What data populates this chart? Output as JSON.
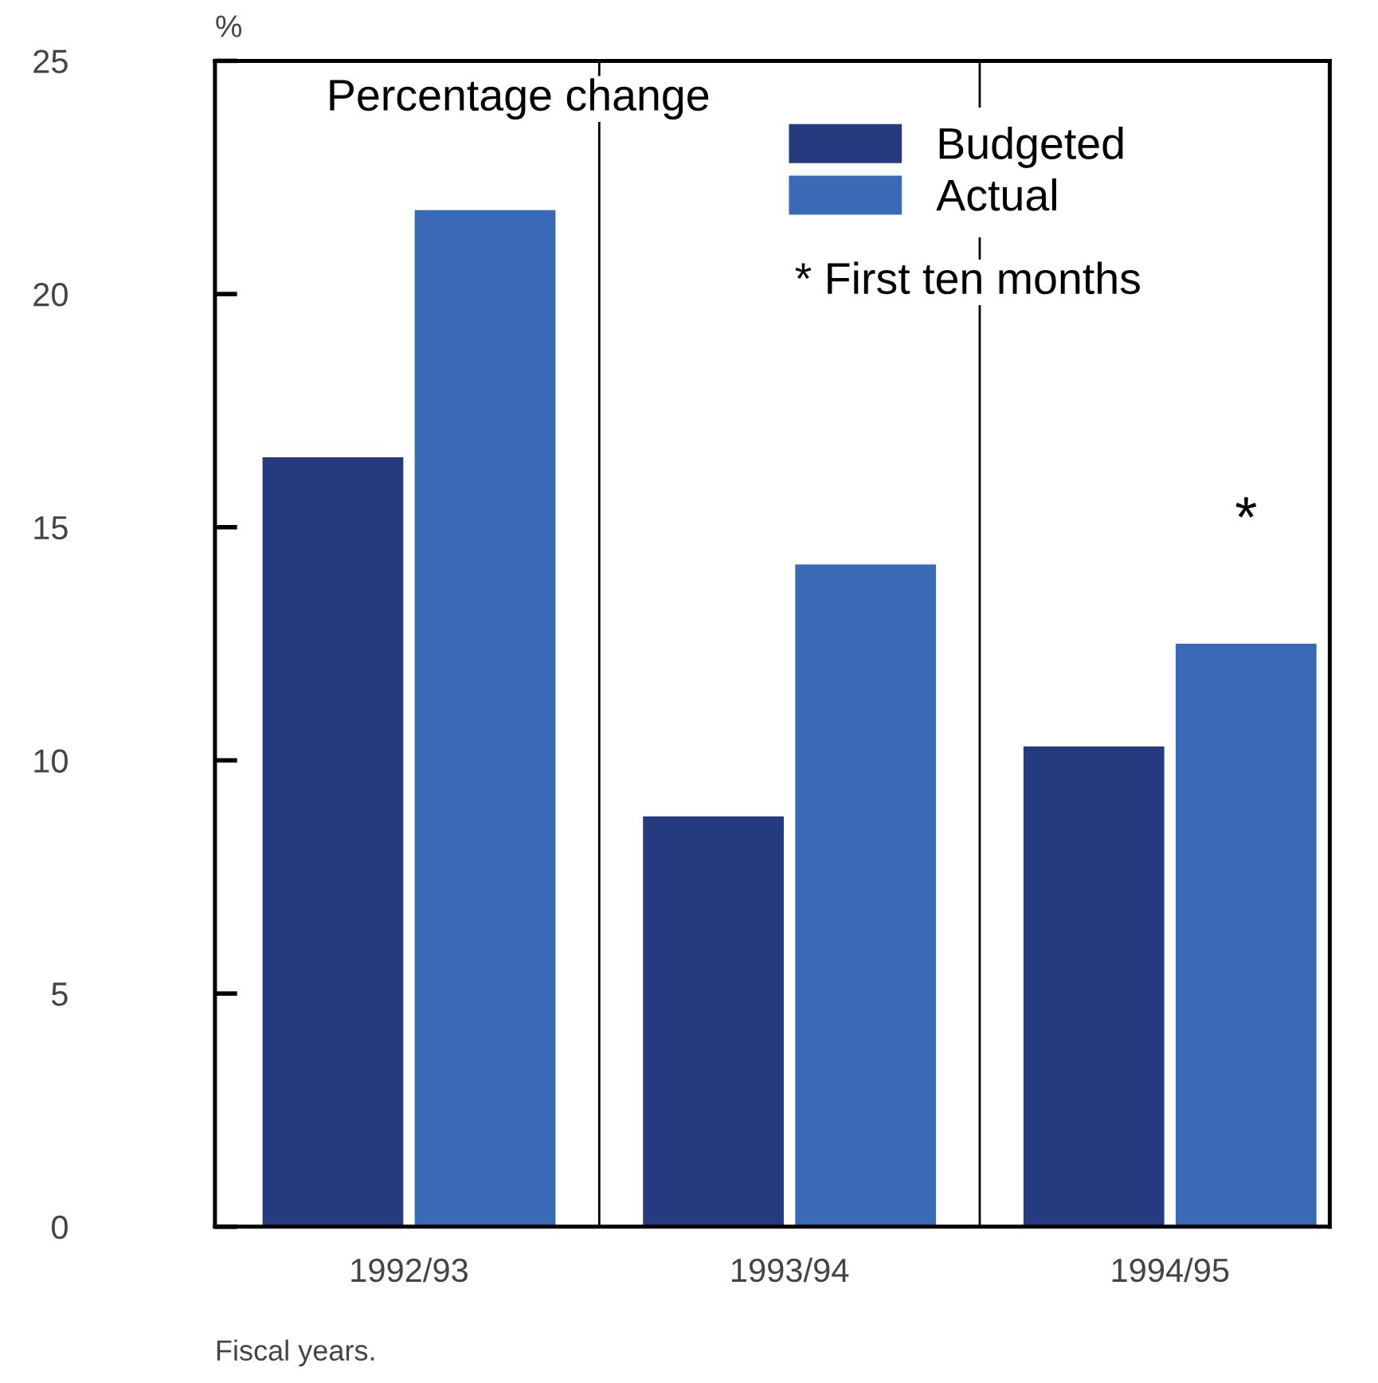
{
  "chart_data": {
    "type": "bar",
    "subtitle": "Percentage change",
    "ylabel": "%",
    "categories": [
      "1992/93",
      "1993/94",
      "1994/95"
    ],
    "series": [
      {
        "name": "Budgeted",
        "color": "#263a80",
        "values": [
          16.5,
          8.8,
          10.3
        ]
      },
      {
        "name": "Actual",
        "color": "#3a6ab5",
        "values": [
          21.8,
          14.2,
          12.5
        ]
      }
    ],
    "ylim": [
      0,
      25
    ],
    "yticks": [
      0,
      5,
      10,
      15,
      20,
      25
    ],
    "grid": false,
    "legend": "top right",
    "annotations": [
      "* First ten months",
      "*",
      "Fiscal years."
    ]
  }
}
